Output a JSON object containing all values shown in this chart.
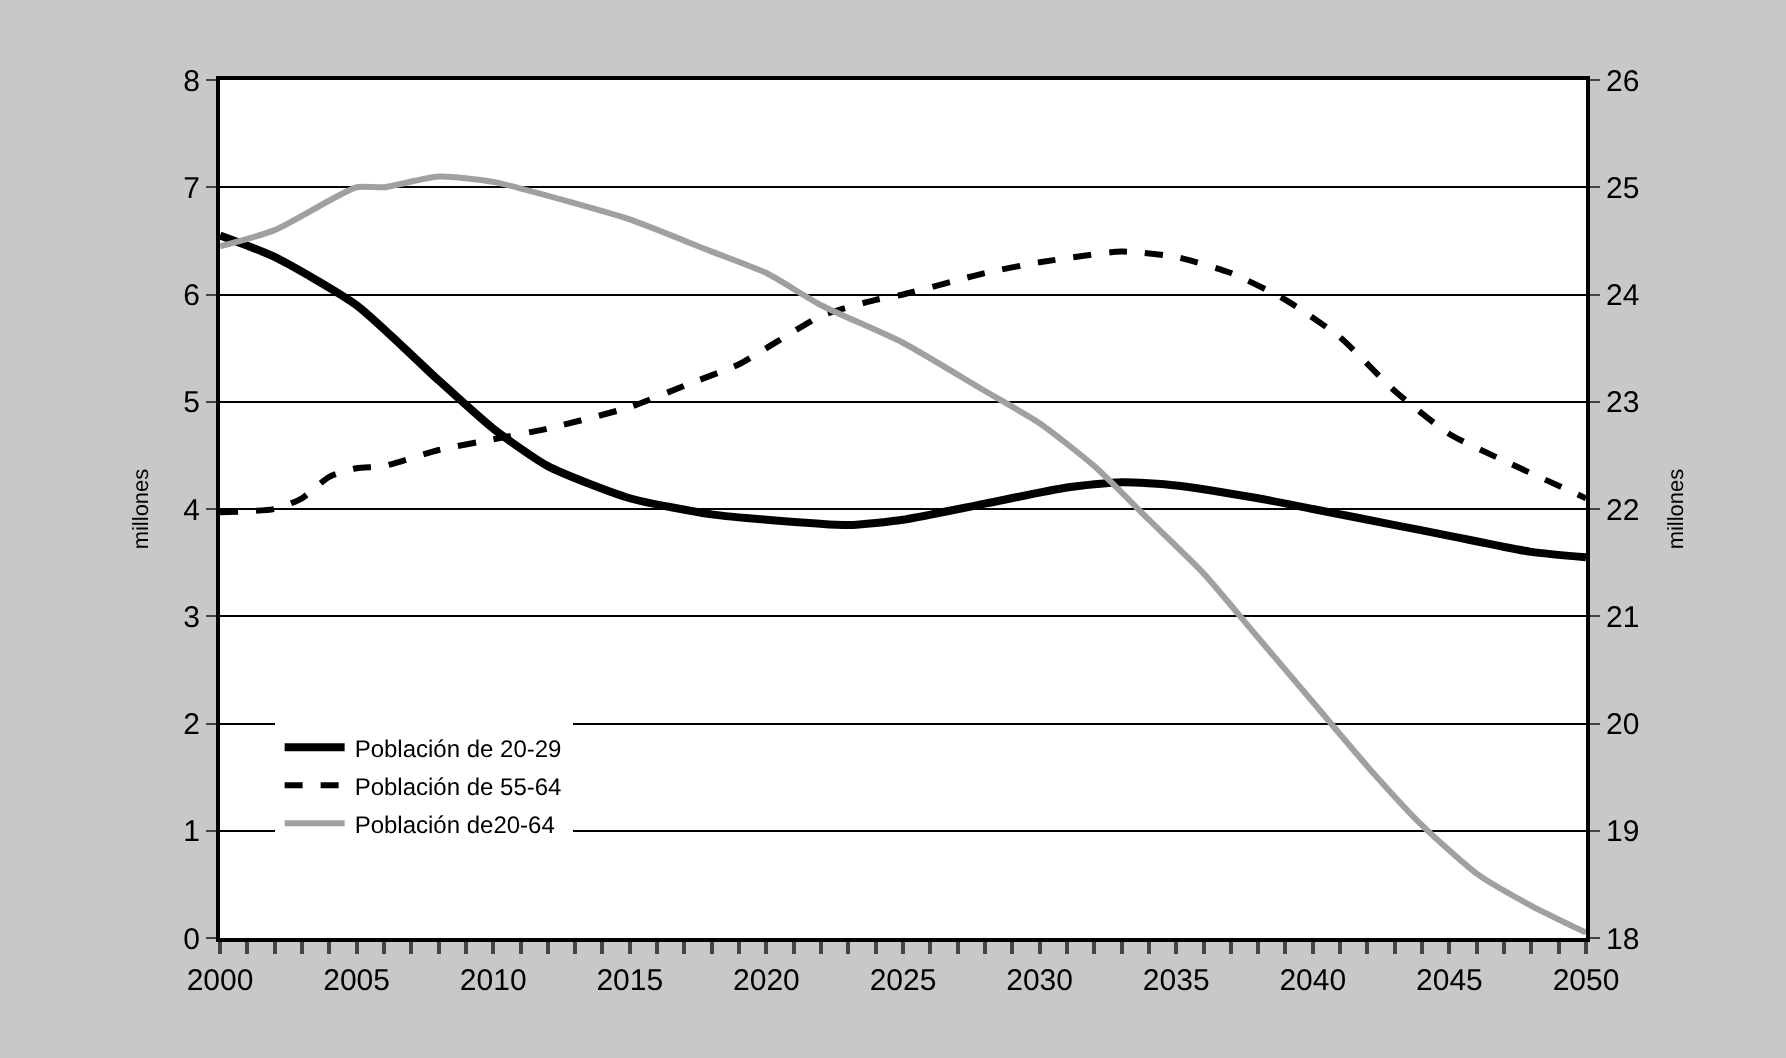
{
  "chart_data": {
    "type": "line",
    "ylabel": "millones",
    "y2label": "millones",
    "xlim": [
      2000,
      2050
    ],
    "xticks": [
      2000,
      {
        "value": 2001,
        "label": null
      },
      {
        "value": 2002,
        "label": null
      },
      {
        "value": 2003,
        "label": null
      },
      {
        "value": 2004,
        "label": null
      },
      2005,
      {
        "value": 2006,
        "label": null
      },
      {
        "value": 2007,
        "label": null
      },
      {
        "value": 2008,
        "label": null
      },
      {
        "value": 2009,
        "label": null
      },
      2010,
      {
        "value": 2011,
        "label": null
      },
      {
        "value": 2012,
        "label": null
      },
      {
        "value": 2013,
        "label": null
      },
      {
        "value": 2014,
        "label": null
      },
      2015,
      {
        "value": 2016,
        "label": null
      },
      {
        "value": 2017,
        "label": null
      },
      {
        "value": 2018,
        "label": null
      },
      {
        "value": 2019,
        "label": null
      },
      2020,
      {
        "value": 2021,
        "label": null
      },
      {
        "value": 2022,
        "label": null
      },
      {
        "value": 2023,
        "label": null
      },
      {
        "value": 2024,
        "label": null
      },
      2025,
      {
        "value": 2026,
        "label": null
      },
      {
        "value": 2027,
        "label": null
      },
      {
        "value": 2028,
        "label": null
      },
      {
        "value": 2029,
        "label": null
      },
      2030,
      {
        "value": 2031,
        "label": null
      },
      {
        "value": 2032,
        "label": null
      },
      {
        "value": 2033,
        "label": null
      },
      {
        "value": 2034,
        "label": null
      },
      2035,
      {
        "value": 2036,
        "label": null
      },
      {
        "value": 2037,
        "label": null
      },
      {
        "value": 2038,
        "label": null
      },
      {
        "value": 2039,
        "label": null
      },
      2040,
      {
        "value": 2041,
        "label": null
      },
      {
        "value": 2042,
        "label": null
      },
      {
        "value": 2043,
        "label": null
      },
      {
        "value": 2044,
        "label": null
      },
      2045,
      {
        "value": 2046,
        "label": null
      },
      {
        "value": 2047,
        "label": null
      },
      {
        "value": 2048,
        "label": null
      },
      {
        "value": 2049,
        "label": null
      },
      2050
    ],
    "ylim": [
      0,
      8
    ],
    "yticks": [
      0,
      1,
      2,
      3,
      4,
      5,
      6,
      7,
      8
    ],
    "y2lim": [
      18,
      26
    ],
    "y2ticks": [
      18,
      19,
      20,
      21,
      22,
      23,
      24,
      25,
      26
    ],
    "grid": "y",
    "legend": "bottom left",
    "marker": "none",
    "series": [
      {
        "name": "Población de 20-29",
        "color": "#000000",
        "line_style": "solid",
        "x": [
          2000,
          2002,
          2005,
          2008,
          2010,
          2012,
          2015,
          2018,
          2020,
          2023,
          2025,
          2028,
          2031,
          2033,
          2035,
          2038,
          2040,
          2043,
          2045,
          2048,
          2050
        ],
        "values": [
          6.55,
          6.35,
          5.9,
          5.2,
          4.75,
          4.4,
          4.1,
          3.95,
          3.9,
          3.85,
          3.9,
          4.05,
          4.2,
          4.25,
          4.22,
          4.1,
          4.0,
          3.85,
          3.75,
          3.6,
          3.55
        ]
      },
      {
        "name": "Población de 55-64",
        "color": "#000000",
        "line_style": "dashed",
        "x": [
          2000,
          2002,
          2003,
          2004,
          2005,
          2006,
          2008,
          2010,
          2012,
          2015,
          2017,
          2019,
          2020,
          2022,
          2024,
          2025,
          2028,
          2030,
          2033,
          2035,
          2037,
          2039,
          2041,
          2043,
          2045,
          2047,
          2050
        ],
        "values": [
          3.97,
          4.0,
          4.1,
          4.3,
          4.38,
          4.4,
          4.55,
          4.65,
          4.75,
          4.95,
          5.15,
          5.35,
          5.5,
          5.8,
          5.95,
          6.0,
          6.2,
          6.3,
          6.4,
          6.35,
          6.2,
          5.95,
          5.6,
          5.1,
          4.7,
          4.45,
          4.1
        ]
      },
      {
        "name": "Población de20-64",
        "color": "#a0a0a0",
        "line_style": "solid",
        "axis": "y2",
        "x": [
          2000,
          2002,
          2005,
          2006,
          2008,
          2010,
          2013,
          2015,
          2018,
          2020,
          2022,
          2025,
          2028,
          2030,
          2032,
          2034,
          2036,
          2038,
          2040,
          2042,
          2044,
          2046,
          2048,
          2050
        ],
        "values": [
          24.45,
          24.6,
          25.0,
          25.0,
          25.1,
          25.05,
          24.85,
          24.7,
          24.4,
          24.2,
          23.9,
          23.55,
          23.1,
          22.8,
          22.4,
          21.9,
          21.4,
          20.8,
          20.2,
          19.6,
          19.05,
          18.6,
          18.3,
          18.05
        ]
      }
    ]
  }
}
